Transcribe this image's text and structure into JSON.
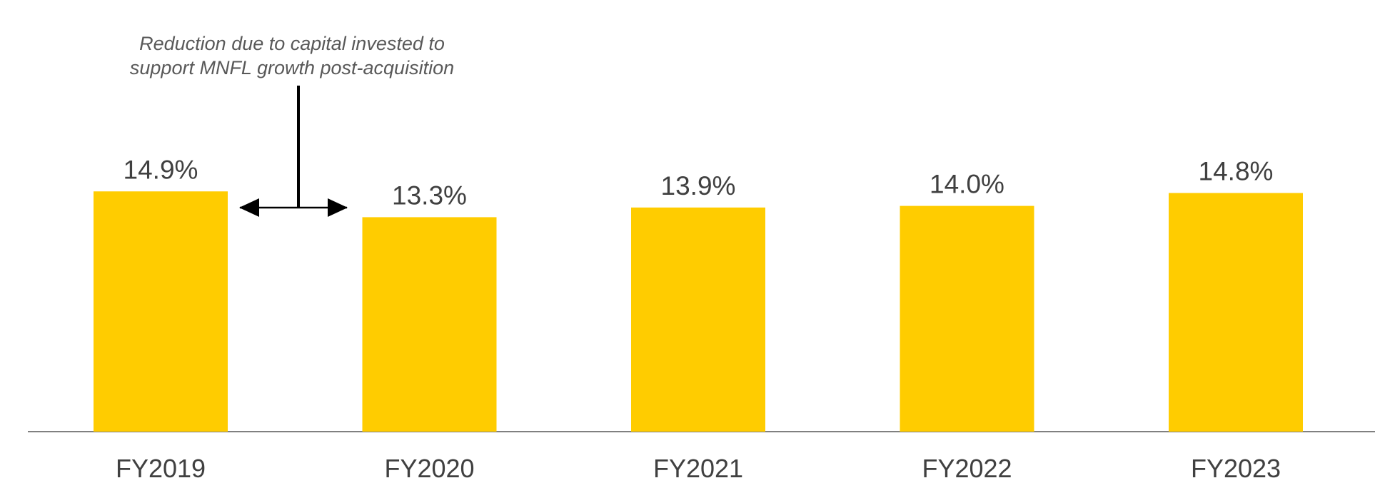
{
  "chart_data": {
    "type": "bar",
    "annotation": [
      "Reduction due to capital invested to",
      "support MNFL growth post-acquisition"
    ],
    "categories": [
      "FY2019",
      "FY2020",
      "FY2021",
      "FY2022",
      "FY2023"
    ],
    "values": [
      14.9,
      13.3,
      13.9,
      14.0,
      14.8
    ],
    "value_labels": [
      "14.9%",
      "13.3%",
      "13.9%",
      "14.0%",
      "14.8%"
    ],
    "color": "#FFCC00"
  }
}
